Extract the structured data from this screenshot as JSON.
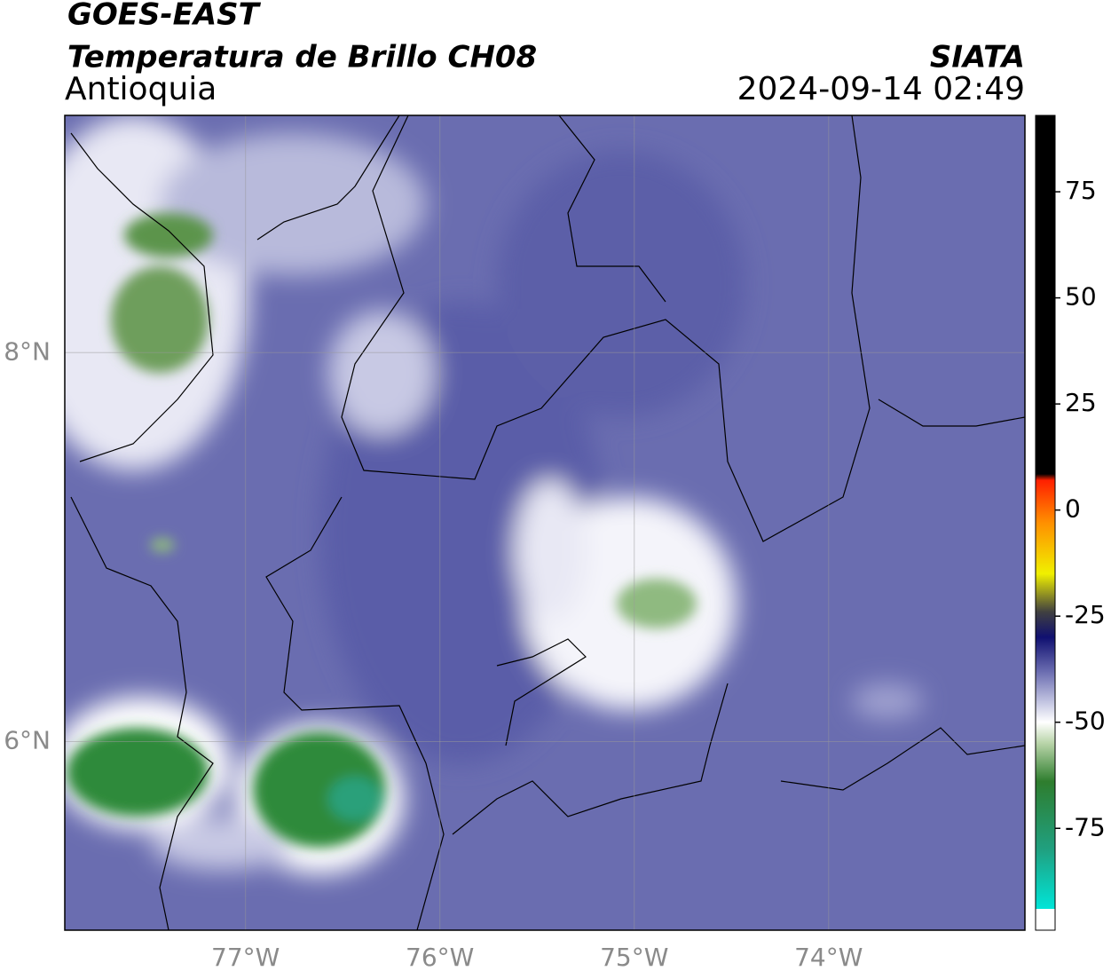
{
  "map": {
    "title": "GOES-EAST",
    "subtitle": "Temperatura de Brillo CH08",
    "region": "Antioquia",
    "source": "SIATA",
    "timestamp": "2024-09-14 02:49",
    "xlim": [
      -77.93,
      -72.99
    ],
    "ylim": [
      5.03,
      9.22
    ],
    "xticks": [
      {
        "value": -77,
        "label": "77°W"
      },
      {
        "value": -76,
        "label": "76°W"
      },
      {
        "value": -75,
        "label": "75°W"
      },
      {
        "value": -74,
        "label": "74°W"
      }
    ],
    "yticks": [
      {
        "value": 6,
        "label": "6°N"
      },
      {
        "value": 8,
        "label": "8°N"
      }
    ],
    "grid": true,
    "colorbar": {
      "lim": [
        -99,
        93
      ],
      "ticks": [
        -75,
        -50,
        -25,
        0,
        25,
        50,
        75
      ],
      "colorscale": [
        {
          "value": -99,
          "color": "#ffffff"
        },
        {
          "value": -94,
          "color": "#ffffff"
        },
        {
          "value": -94,
          "color": "#00e5d8"
        },
        {
          "value": -80,
          "color": "#20a080"
        },
        {
          "value": -64,
          "color": "#2e7d2e"
        },
        {
          "value": -55,
          "color": "#b8d4a8"
        },
        {
          "value": -50,
          "color": "#ffffff"
        },
        {
          "value": -45,
          "color": "#c0c2e0"
        },
        {
          "value": -38,
          "color": "#6a6cb0"
        },
        {
          "value": -30,
          "color": "#101070"
        },
        {
          "value": -24,
          "color": "#404040"
        },
        {
          "value": -15,
          "color": "#f0f000"
        },
        {
          "value": -3,
          "color": "#ff9000"
        },
        {
          "value": 7,
          "color": "#ff2000"
        },
        {
          "value": 8.5,
          "color": "#000000"
        },
        {
          "value": 93,
          "color": "#000000"
        }
      ]
    }
  }
}
